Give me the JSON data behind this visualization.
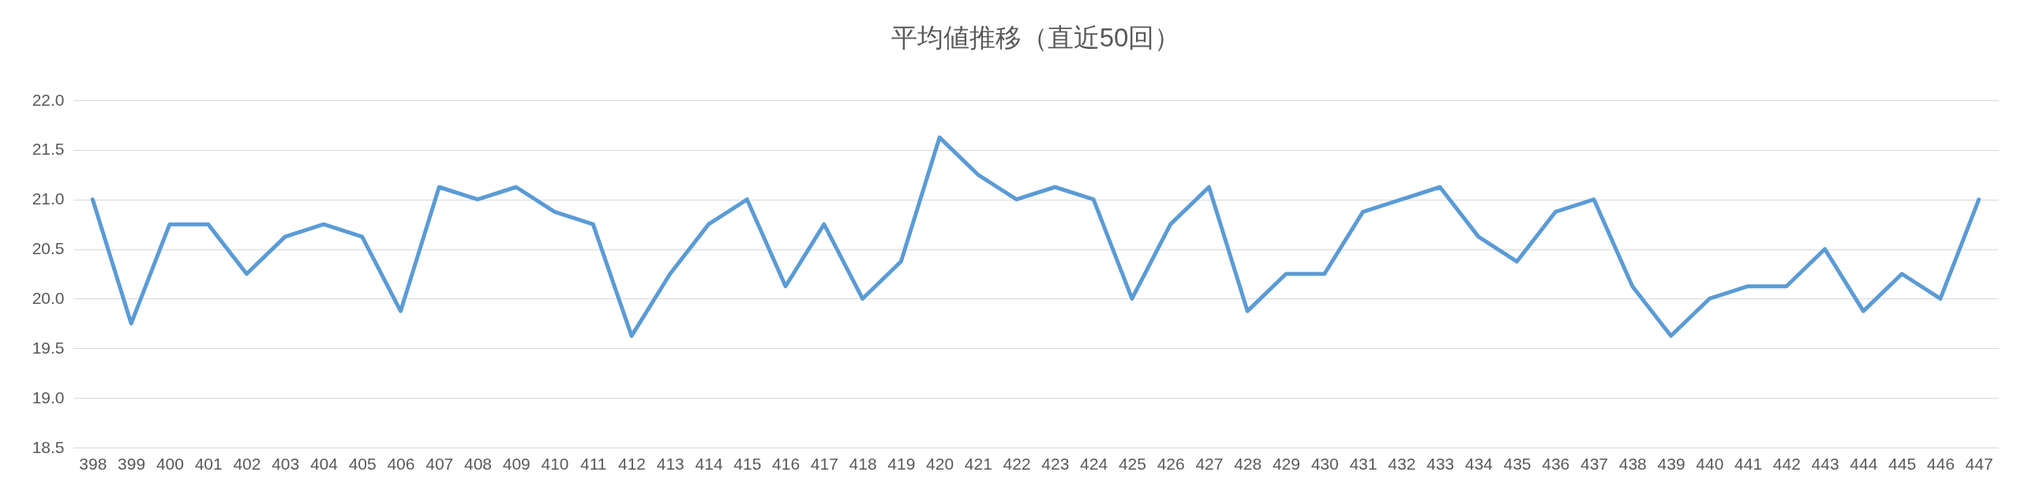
{
  "chart_data": {
    "type": "line",
    "title": "平均値推移（直近50回）",
    "categories": [
      "398",
      "399",
      "400",
      "401",
      "402",
      "403",
      "404",
      "405",
      "406",
      "407",
      "408",
      "409",
      "410",
      "411",
      "412",
      "413",
      "414",
      "415",
      "416",
      "417",
      "418",
      "419",
      "420",
      "421",
      "422",
      "423",
      "424",
      "425",
      "426",
      "427",
      "428",
      "429",
      "430",
      "431",
      "432",
      "433",
      "434",
      "435",
      "436",
      "437",
      "438",
      "439",
      "440",
      "441",
      "442",
      "443",
      "444",
      "445",
      "446",
      "447"
    ],
    "series": [
      {
        "color": "#5b9bd5",
        "values": [
          21.0,
          19.75,
          20.75,
          20.75,
          20.25,
          20.625,
          20.75,
          20.625,
          19.875,
          21.125,
          21.0,
          21.125,
          20.875,
          20.75,
          19.625,
          20.25,
          20.75,
          21.0,
          20.125,
          20.75,
          20.0,
          20.375,
          21.625,
          21.25,
          21.0,
          21.125,
          21.0,
          20.0,
          20.75,
          21.125,
          19.875,
          20.25,
          20.25,
          20.875,
          21.0,
          21.125,
          20.625,
          20.375,
          20.875,
          21.0,
          20.125,
          19.625,
          20.0,
          20.125,
          20.125,
          20.5,
          19.875,
          20.25,
          20.0,
          21.0
        ]
      }
    ],
    "ylim": [
      18.5,
      22.0
    ],
    "yticks": [
      18.5,
      {
        "value": 19,
        "label": "19.0"
      },
      19.5,
      {
        "value": 20,
        "label": "20.0"
      },
      20.5,
      {
        "value": 21,
        "label": "21.0"
      },
      21.5,
      {
        "value": 22,
        "label": "22.0"
      }
    ],
    "grid": "y",
    "marker": "none",
    "line_style": "solid"
  }
}
